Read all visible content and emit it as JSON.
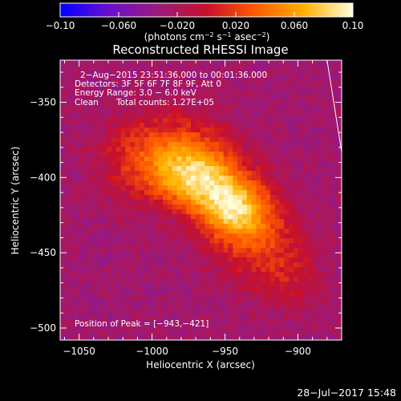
{
  "chart_data": {
    "type": "heatmap",
    "title": "Reconstructed RHESSI Image",
    "xlabel": "Heliocentric X (arcsec)",
    "ylabel": "Heliocentric Y (arcsec)",
    "xlim": [
      -1063,
      -870
    ],
    "ylim": [
      -508,
      -322
    ],
    "x_ticks": [
      {
        "value": -1050,
        "label": "−1050"
      },
      {
        "value": -1000,
        "label": "−1000"
      },
      {
        "value": -950,
        "label": "−950"
      },
      {
        "value": -900,
        "label": "−900"
      }
    ],
    "y_ticks": [
      {
        "value": -350,
        "label": "−350"
      },
      {
        "value": -400,
        "label": "−400"
      },
      {
        "value": -450,
        "label": "−450"
      },
      {
        "value": -500,
        "label": "−500"
      }
    ],
    "colorbar": {
      "range": [
        -0.1,
        0.1
      ],
      "unit_prefix": "(photons cm",
      "unit_exp1": "−2",
      "unit_mid": " s",
      "unit_exp2": "−1",
      "unit_mid2": " asec",
      "unit_exp3": "−2",
      "unit_suffix": ")",
      "ticks": [
        {
          "value": -0.1,
          "label": "−0.10"
        },
        {
          "value": -0.06,
          "label": "−0.060"
        },
        {
          "value": -0.02,
          "label": "−0.020"
        },
        {
          "value": 0.02,
          "label": "0.020"
        },
        {
          "value": 0.06,
          "label": "0.060"
        },
        {
          "value": 0.1,
          "label": "0.10"
        }
      ],
      "colors": [
        "#0000ff",
        "#6a0fcf",
        "#9a1a7a",
        "#c8102a",
        "#ff5a00",
        "#ffb000",
        "#ffffe0"
      ]
    },
    "annotations": {
      "time": "2−Aug−2015 23:51:36.000 to 00:01:36.000",
      "detectors": "Detectors: 3F 5F 6F 7F 8F 9F, Att 0",
      "energy": "Energy Range: 3.0 − 6.0 keV",
      "method": "Clean",
      "counts": "Total counts: 1.27E+05",
      "peak": "Position of Peak = [−943,−421]"
    },
    "peak": {
      "x": -943,
      "y": -421
    },
    "sources": [
      {
        "x": -971,
        "y": -400,
        "sx": 22,
        "sy": 14,
        "amp": 0.095
      },
      {
        "x": -944,
        "y": -421,
        "sx": 18,
        "sy": 14,
        "amp": 0.1
      },
      {
        "x": -985,
        "y": -378,
        "sx": 26,
        "sy": 16,
        "amp": 0.045
      },
      {
        "x": -925,
        "y": -446,
        "sx": 22,
        "sy": 18,
        "amp": 0.04
      },
      {
        "x": -1015,
        "y": -390,
        "sx": 18,
        "sy": 18,
        "amp": 0.02
      },
      {
        "x": -905,
        "y": -470,
        "sx": 16,
        "sy": 14,
        "amp": 0.018
      }
    ],
    "limb_line": {
      "from": [
        -880,
        -322
      ],
      "to": [
        -870,
        -383
      ]
    }
  },
  "footer": {
    "date": "28−Jul−2017 15:48"
  }
}
